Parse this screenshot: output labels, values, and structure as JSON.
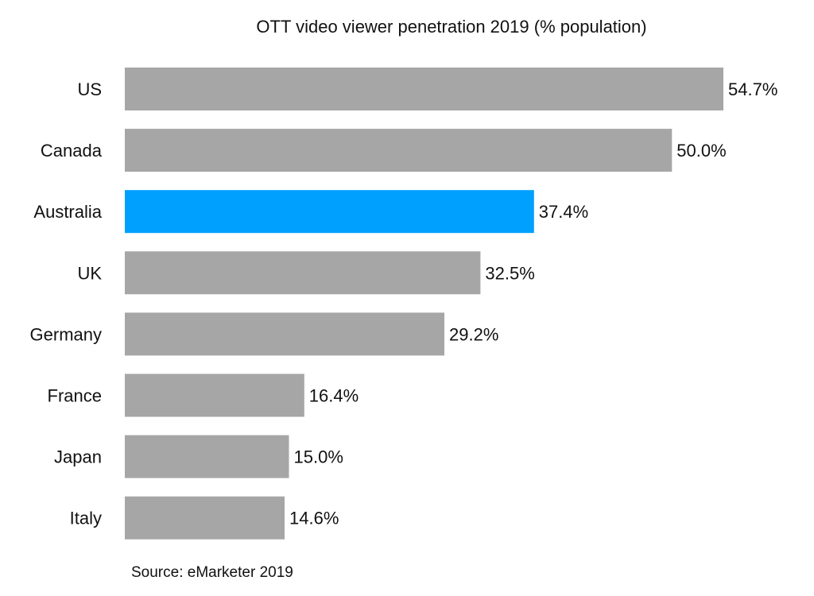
{
  "chart_data": {
    "type": "bar",
    "orientation": "horizontal",
    "title": "OTT video viewer penetration 2019 (% population)",
    "xlabel": "",
    "ylabel": "",
    "categories": [
      "US",
      "Canada",
      "Australia",
      "UK",
      "Germany",
      "France",
      "Japan",
      "Italy"
    ],
    "values": [
      54.7,
      50.0,
      37.4,
      32.5,
      29.2,
      16.4,
      15.0,
      14.6
    ],
    "value_labels": [
      "54.7%",
      "50.0%",
      "37.4%",
      "32.5%",
      "29.2%",
      "16.4%",
      "15.0%",
      "14.6%"
    ],
    "highlight_category": "Australia",
    "xlim": [
      0,
      54.7
    ],
    "grid": false,
    "legend": "none",
    "annotation": "Source: eMarketer 2019",
    "colors": {
      "default_bar": "#a6a6a6",
      "highlight_bar": "#00a0ff",
      "text": "#111111"
    }
  }
}
